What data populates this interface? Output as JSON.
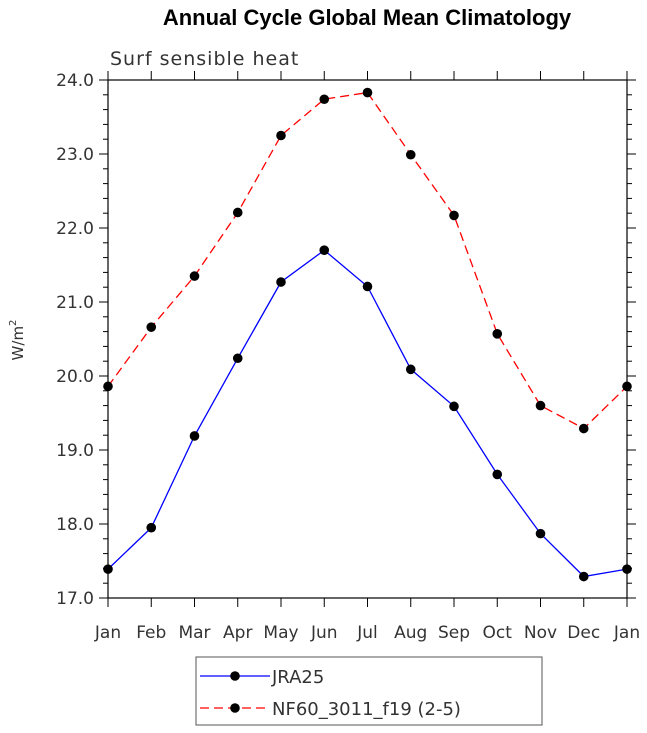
{
  "chart_data": {
    "type": "line",
    "title": "Annual Cycle Global Mean Climatology",
    "subtitle": "Surf sensible heat",
    "ylabel": "W/m",
    "ylabel_sup": "2",
    "xlabel": "",
    "categories": [
      "Jan",
      "Feb",
      "Mar",
      "Apr",
      "May",
      "Jun",
      "Jul",
      "Aug",
      "Sep",
      "Oct",
      "Nov",
      "Dec",
      "Jan"
    ],
    "ylim": [
      17.0,
      24.0
    ],
    "yticks": [
      "17.0",
      "18.0",
      "19.0",
      "20.0",
      "21.0",
      "22.0",
      "23.0",
      "24.0"
    ],
    "series": [
      {
        "name": "JRA25",
        "color": "#0000ff",
        "dash": "solid",
        "values": [
          17.39,
          17.95,
          19.19,
          20.24,
          21.27,
          21.7,
          21.21,
          20.09,
          19.59,
          18.67,
          17.87,
          17.29,
          17.39
        ]
      },
      {
        "name": "NF60_3011_f19 (2-5)",
        "color": "#ff0000",
        "dash": "dashed",
        "values": [
          19.86,
          20.66,
          21.35,
          22.21,
          23.25,
          23.74,
          23.83,
          22.99,
          22.17,
          20.57,
          19.6,
          19.29,
          19.86
        ]
      }
    ],
    "legend_position": "bottom-center"
  }
}
